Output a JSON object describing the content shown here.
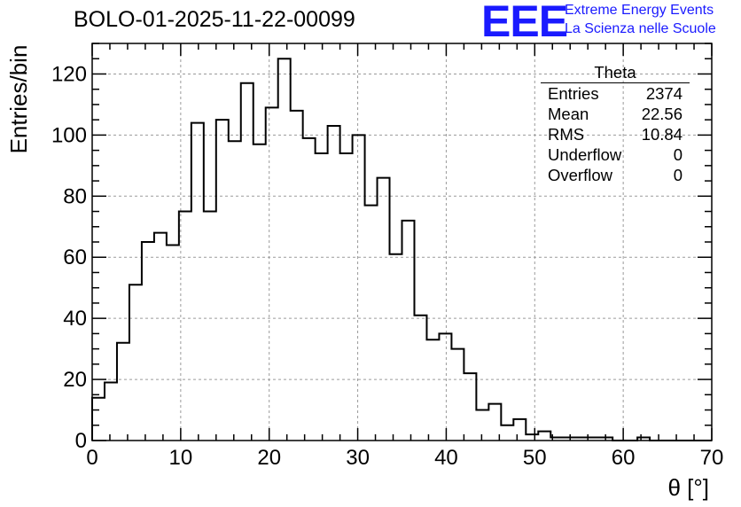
{
  "header": {
    "run_title": "BOLO-01-2025-11-22-00099",
    "logo_text": "EEE",
    "logo_line1": "Extreme Energy Events",
    "logo_line2": "La Scienza nelle Scuole",
    "logo_color": "#1a1aff"
  },
  "stats_box": {
    "title": "Theta",
    "rows": [
      {
        "label": "Entries",
        "value": "2374"
      },
      {
        "label": "Mean",
        "value": "22.56"
      },
      {
        "label": "RMS",
        "value": "10.84"
      },
      {
        "label": "Underflow",
        "value": "0"
      },
      {
        "label": "Overflow",
        "value": "0"
      }
    ]
  },
  "chart_data": {
    "type": "bar",
    "style": "step-histogram",
    "title": "BOLO-01-2025-11-22-00099",
    "xlabel": "θ [°]",
    "ylabel": "Entries/bin",
    "xlim": [
      0,
      70
    ],
    "ylim": [
      0,
      130
    ],
    "grid": true,
    "bin_width": 1.4,
    "x_ticks": [
      0,
      10,
      20,
      30,
      40,
      50,
      60,
      70
    ],
    "y_ticks": [
      0,
      20,
      40,
      60,
      80,
      100,
      120
    ],
    "values": [
      14,
      19,
      32,
      51,
      65,
      68,
      64,
      75,
      104,
      75,
      105,
      98,
      117,
      97,
      109,
      125,
      108,
      99,
      94,
      103,
      94,
      100,
      77,
      86,
      61,
      72,
      41,
      33,
      35,
      30,
      22,
      10,
      12,
      5,
      7,
      2,
      3,
      1,
      1,
      1,
      1,
      1,
      0,
      0,
      1,
      0,
      0,
      0,
      0,
      0
    ]
  }
}
